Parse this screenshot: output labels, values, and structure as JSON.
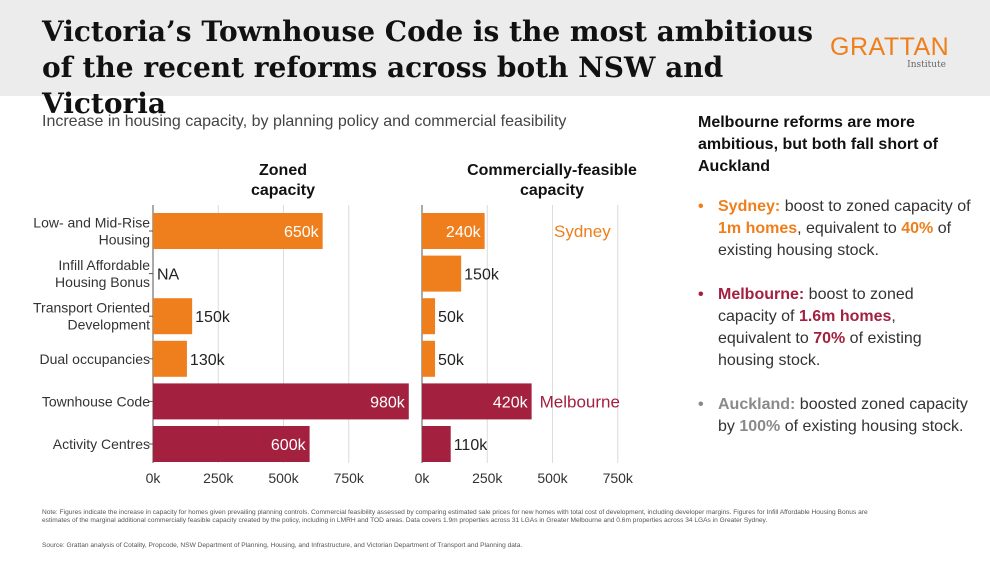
{
  "header": {
    "title": "Victoria’s Townhouse Code is the most ambitious of the recent reforms across both NSW and Victoria",
    "logo_main": "GRATTAN",
    "logo_sub": "Institute"
  },
  "subtitle": "Increase in housing capacity, by planning policy and commercial feasibility",
  "colors": {
    "sydney": "#ee7f1c",
    "melbourne": "#a3203f",
    "auckland": "#8a8a8a",
    "header_bg": "#ececec"
  },
  "chart_data": {
    "type": "bar",
    "orientation": "horizontal",
    "categories": [
      [
        "Low- and Mid-Rise",
        "Housing"
      ],
      [
        "Infill Affordable",
        "Housing Bonus"
      ],
      [
        "Transport Oriented",
        "Development"
      ],
      [
        "Dual occupancies"
      ],
      [
        "Townhouse Code"
      ],
      [
        "Activity Centres"
      ]
    ],
    "city": [
      "Sydney",
      "Sydney",
      "Sydney",
      "Sydney",
      "Melbourne",
      "Melbourne"
    ],
    "panels": [
      {
        "title": [
          "Zoned",
          "capacity"
        ],
        "values": [
          650,
          null,
          150,
          130,
          980,
          600
        ],
        "labels": [
          "650k",
          "NA",
          "150k",
          "130k",
          "980k",
          "600k"
        ],
        "xlim": [
          0,
          1000
        ],
        "ticks": [
          0,
          250,
          500,
          750
        ],
        "tick_labels": [
          "0k",
          "250k",
          "500k",
          "750k"
        ]
      },
      {
        "title": [
          "Commercially-feasible",
          "capacity"
        ],
        "values": [
          240,
          150,
          50,
          50,
          420,
          110
        ],
        "labels": [
          "240k",
          "150k",
          "50k",
          "50k",
          "420k",
          "110k"
        ],
        "xlim": [
          0,
          750
        ],
        "ticks": [
          0,
          250,
          500,
          750
        ],
        "tick_labels": [
          "0k",
          "250k",
          "500k",
          "750k"
        ]
      }
    ],
    "legend": [
      {
        "label": "Sydney",
        "row": 0
      },
      {
        "label": "Melbourne",
        "row": 4
      }
    ]
  },
  "sidebar": {
    "title": "Melbourne reforms are more ambitious, but both fall short of Auckland",
    "points": [
      {
        "city": "Sydney:",
        "t1": " boost to zoned capacity of ",
        "num1": "1m homes",
        "t2": ", equivalent to ",
        "num2": "40%",
        "t3": " of existing housing stock."
      },
      {
        "city": "Melbourne:",
        "t1": " boost to zoned capacity of ",
        "num1": "1.6m homes",
        "t2": ", equivalent to ",
        "num2": "70%",
        "t3": " of existing housing stock."
      },
      {
        "city": "Auckland:",
        "t1": " boosted zoned capacity by ",
        "num1": "100%",
        "t2": " of existing housing stock."
      }
    ]
  },
  "note": "Note: Figures indicate the increase in capacity for homes given prevailing planning controls. Commercial feasibility assessed by comparing estimated sale prices for new homes with total cost of development, including developer margins. Figures for Infill Affordable Housing Bonus are estimates of the marginal additional commercially feasible capacity created by the policy, including in LMRH and TOD areas. Data covers 1.9m properties across 31 LGAs in Greater Melbourne and 0.6m properties across 34 LGAs in Greater Sydney.",
  "source": "Source: Grattan analysis of Cotality, Propcode, NSW Department of Planning, Housing, and Infrastructure, and Victorian Department of Transport and Planning data."
}
